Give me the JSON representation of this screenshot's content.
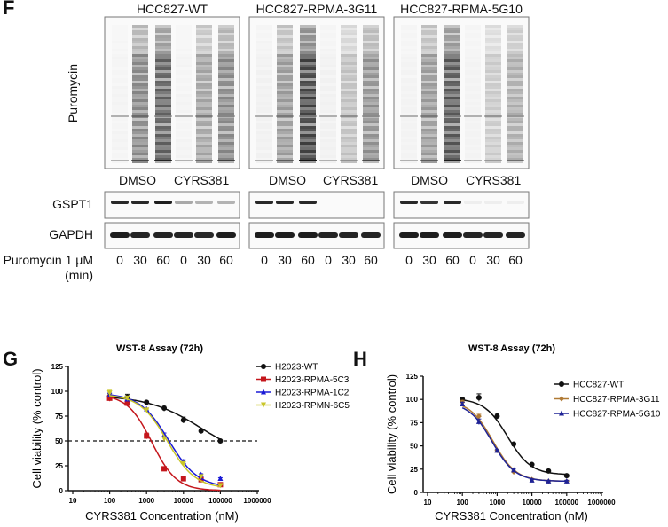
{
  "panel_labels": {
    "f": "F",
    "g": "G",
    "h": "H"
  },
  "blot": {
    "panels": [
      {
        "title": "HCC827-WT",
        "puromycin": [
          0.03,
          0.6,
          0.8,
          0.03,
          0.45,
          0.6
        ],
        "gspt1": [
          0.9,
          0.9,
          0.95,
          0.35,
          0.3,
          0.3
        ],
        "gapdh": [
          0.95,
          0.92,
          0.92,
          0.92,
          0.9,
          0.95
        ]
      },
      {
        "title": "HCC827-RPMA-3G11",
        "puromycin": [
          0.05,
          0.5,
          0.95,
          0.05,
          0.3,
          0.55
        ],
        "gspt1": [
          0.9,
          0.9,
          0.9,
          0,
          0,
          0
        ],
        "gapdh": [
          0.95,
          0.95,
          0.95,
          0.92,
          0.92,
          0.92
        ]
      },
      {
        "title": "HCC827-RPMA-5G10",
        "puromycin": [
          0.04,
          0.5,
          0.85,
          0.04,
          0.25,
          0.4
        ],
        "gspt1": [
          0.9,
          0.85,
          0.9,
          0.05,
          0.05,
          0.05
        ],
        "gapdh": [
          0.95,
          0.95,
          0.95,
          0.92,
          0.92,
          0.92
        ]
      }
    ],
    "treatments": [
      "DMSO",
      "CYRS381"
    ],
    "row_labels": {
      "puromycin": "Puromycin",
      "gspt1": "GSPT1",
      "gapdh": "GAPDH"
    },
    "lane_row_label": "Puromycin 1 μM",
    "lane_row_unit": "(min)",
    "lanes": [
      "0",
      "30",
      "60",
      "0",
      "30",
      "60"
    ]
  },
  "chart_data": [
    {
      "type": "line",
      "title": "WST-8 Assay (72h)",
      "xlabel": "CYRS381 Concentration (nM)",
      "ylabel": "Cell viability (% control)",
      "xscale": "log",
      "xlim": [
        10,
        1000000
      ],
      "xticks": [
        "10",
        "100",
        "1000",
        "10000",
        "100000",
        "1000000"
      ],
      "ylim": [
        0,
        125
      ],
      "yticks": [
        "0",
        "25",
        "50",
        "75",
        "100",
        "125"
      ],
      "reference_line": 50,
      "legend_position": "right",
      "x": [
        100,
        300,
        1000,
        3000,
        10000,
        30000,
        100000
      ],
      "series": [
        {
          "name": "H2023-WT",
          "color": "#111111",
          "marker": "circle",
          "values": [
            95,
            94,
            89,
            83,
            71,
            60,
            50
          ],
          "err": [
            3,
            3,
            1,
            3,
            3,
            2,
            1
          ],
          "fit": {
            "top": 96,
            "bottom": 30,
            "ec50": 30000,
            "hill": 0.6
          }
        },
        {
          "name": "H2023-RPMA-5C3",
          "color": "#c4161c",
          "marker": "square",
          "values": [
            93,
            88,
            55,
            22,
            12,
            11,
            6
          ],
          "err": [
            3,
            2,
            3,
            2,
            1,
            1,
            1
          ],
          "fit": {
            "top": 97,
            "bottom": 0,
            "ec50": 1400,
            "hill": 1.3
          }
        },
        {
          "name": "H2023-RPMA-1C2",
          "color": "#1a1ad6",
          "marker": "triangle-up",
          "values": [
            96,
            92,
            82,
            56,
            29,
            16,
            12
          ],
          "err": [
            2,
            2,
            1,
            2,
            2,
            1,
            1
          ],
          "fit": {
            "top": 98,
            "bottom": 3,
            "ec50": 4000,
            "hill": 1.1
          }
        },
        {
          "name": "H2023-RPMN-6C5",
          "color": "#c9c62a",
          "marker": "triangle-down",
          "values": [
            98,
            93,
            81,
            52,
            27,
            14,
            5
          ],
          "err": [
            3,
            2,
            1,
            2,
            2,
            1,
            1
          ],
          "fit": {
            "top": 97,
            "bottom": 2,
            "ec50": 3700,
            "hill": 1.15
          }
        }
      ]
    },
    {
      "type": "line",
      "title": "WST-8 Assay (72h)",
      "xlabel": "CYRS381 Concentration (nM)",
      "ylabel": "Cell viability (% control)",
      "xscale": "log",
      "xlim": [
        10,
        1000000
      ],
      "xticks": [
        "10",
        "100",
        "1000",
        "10000",
        "100000",
        "1000000"
      ],
      "ylim": [
        0,
        125
      ],
      "yticks": [
        "0",
        "25",
        "50",
        "75",
        "100",
        "125"
      ],
      "legend_position": "top-right",
      "x": [
        100,
        300,
        1000,
        3000,
        10000,
        30000,
        100000
      ],
      "series": [
        {
          "name": "HCC827-WT",
          "color": "#111111",
          "marker": "circle",
          "values": [
            100,
            102,
            82,
            52,
            30,
            23,
            18
          ],
          "err": [
            2,
            4,
            3,
            1,
            1,
            1,
            1
          ],
          "fit": {
            "top": 101,
            "bottom": 19,
            "ec50": 2000,
            "hill": 1.3
          }
        },
        {
          "name": "HCC827-RPMA-3G11",
          "color": "#b07a34",
          "marker": "diamond",
          "values": [
            97,
            82,
            45,
            22,
            14,
            12,
            12
          ],
          "err": [
            2,
            2,
            1,
            1,
            1,
            1,
            1
          ],
          "fit": {
            "top": 99,
            "bottom": 12,
            "ec50": 750,
            "hill": 1.3
          }
        },
        {
          "name": "HCC827-RPMA-5G10",
          "color": "#1f2396",
          "marker": "triangle-up",
          "values": [
            95,
            76,
            45,
            24,
            13,
            12,
            12
          ],
          "err": [
            2,
            3,
            1,
            1,
            1,
            1,
            1
          ],
          "fit": {
            "top": 97,
            "bottom": 12,
            "ec50": 720,
            "hill": 1.3
          }
        }
      ]
    }
  ]
}
